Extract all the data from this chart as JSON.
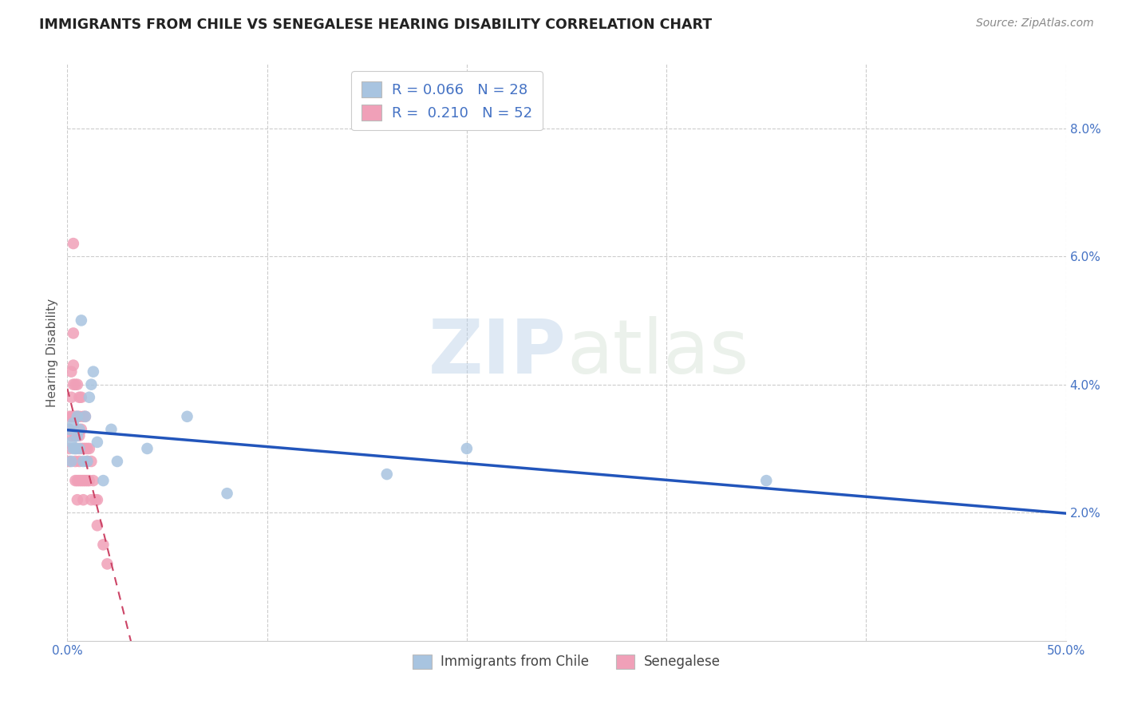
{
  "title": "IMMIGRANTS FROM CHILE VS SENEGALESE HEARING DISABILITY CORRELATION CHART",
  "source": "Source: ZipAtlas.com",
  "ylabel": "Hearing Disability",
  "xlim": [
    0,
    0.5
  ],
  "ylim": [
    0,
    0.09
  ],
  "yticks": [
    0.02,
    0.04,
    0.06,
    0.08
  ],
  "ytick_labels": [
    "2.0%",
    "4.0%",
    "6.0%",
    "8.0%"
  ],
  "xticks": [
    0.0,
    0.1,
    0.2,
    0.3,
    0.4,
    0.5
  ],
  "xtick_labels": [
    "0.0%",
    "",
    "",
    "",
    "",
    "50.0%"
  ],
  "legend_r_chile": "0.066",
  "legend_n_chile": "28",
  "legend_r_senegal": "0.210",
  "legend_n_senegal": "52",
  "color_chile": "#a8c4e0",
  "color_senegal": "#f0a0b8",
  "trendline_chile_color": "#2255bb",
  "trendline_senegal_color": "#cc4466",
  "watermark_zip": "ZIP",
  "watermark_atlas": "atlas",
  "background_color": "#ffffff",
  "chile_x": [
    0.001,
    0.002,
    0.002,
    0.003,
    0.003,
    0.004,
    0.004,
    0.005,
    0.005,
    0.006,
    0.006,
    0.007,
    0.008,
    0.009,
    0.01,
    0.011,
    0.012,
    0.013,
    0.015,
    0.018,
    0.022,
    0.025,
    0.04,
    0.06,
    0.08,
    0.16,
    0.2,
    0.35
  ],
  "chile_y": [
    0.033,
    0.031,
    0.028,
    0.034,
    0.03,
    0.03,
    0.03,
    0.035,
    0.032,
    0.033,
    0.03,
    0.05,
    0.028,
    0.035,
    0.028,
    0.038,
    0.04,
    0.042,
    0.031,
    0.025,
    0.033,
    0.028,
    0.03,
    0.035,
    0.023,
    0.026,
    0.03,
    0.025
  ],
  "senegal_x": [
    0.001,
    0.001,
    0.001,
    0.001,
    0.002,
    0.002,
    0.002,
    0.002,
    0.003,
    0.003,
    0.003,
    0.003,
    0.003,
    0.004,
    0.004,
    0.004,
    0.004,
    0.004,
    0.005,
    0.005,
    0.005,
    0.005,
    0.005,
    0.006,
    0.006,
    0.006,
    0.006,
    0.006,
    0.007,
    0.007,
    0.007,
    0.007,
    0.008,
    0.008,
    0.008,
    0.008,
    0.009,
    0.009,
    0.009,
    0.01,
    0.01,
    0.01,
    0.011,
    0.011,
    0.012,
    0.012,
    0.013,
    0.014,
    0.015,
    0.015,
    0.018,
    0.02
  ],
  "senegal_y": [
    0.035,
    0.033,
    0.03,
    0.028,
    0.042,
    0.038,
    0.035,
    0.032,
    0.048,
    0.043,
    0.04,
    0.035,
    0.062,
    0.04,
    0.035,
    0.032,
    0.028,
    0.025,
    0.04,
    0.035,
    0.03,
    0.025,
    0.022,
    0.038,
    0.035,
    0.032,
    0.028,
    0.025,
    0.038,
    0.033,
    0.03,
    0.025,
    0.035,
    0.03,
    0.025,
    0.022,
    0.035,
    0.03,
    0.025,
    0.03,
    0.028,
    0.025,
    0.03,
    0.025,
    0.028,
    0.022,
    0.025,
    0.022,
    0.022,
    0.018,
    0.015,
    0.012
  ]
}
